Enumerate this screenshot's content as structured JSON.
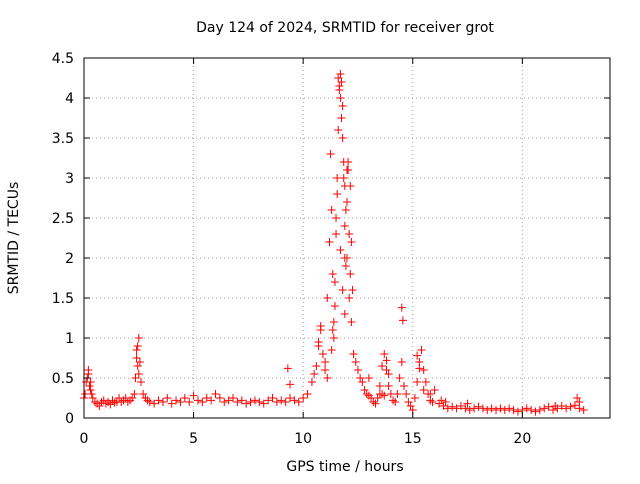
{
  "chart_data": {
    "type": "scatter",
    "title": "Day 124 of 2024, SRMTID for receiver grot",
    "xlabel": "GPS time / hours",
    "ylabel": "SRMTID / TECUs",
    "xlim": [
      0,
      24
    ],
    "ylim": [
      0,
      4.5
    ],
    "xticks": [
      0,
      5,
      10,
      15,
      20
    ],
    "xtick_labels": [
      "0",
      "5",
      "10",
      "15",
      "20"
    ],
    "yticks": [
      0,
      0.5,
      1,
      1.5,
      2,
      2.5,
      3,
      3.5,
      4,
      4.5
    ],
    "ytick_labels": [
      "0",
      "0.5",
      "1",
      "1.5",
      "2",
      "2.5",
      "3",
      "3.5",
      "4",
      "4.5"
    ],
    "grid": true,
    "marker": "+",
    "series": [
      {
        "name": "SRMTID",
        "color": "#ff0000",
        "x": [
          0.0,
          0.05,
          0.1,
          0.15,
          0.2,
          0.25,
          0.3,
          0.35,
          0.4,
          0.5,
          0.6,
          0.7,
          0.8,
          0.9,
          1.0,
          1.1,
          1.2,
          1.3,
          1.4,
          1.5,
          1.6,
          1.7,
          1.8,
          1.9,
          2.0,
          2.1,
          2.2,
          2.3,
          2.35,
          2.4,
          2.45,
          2.5,
          2.55,
          2.6,
          2.7,
          2.8,
          2.9,
          3.0,
          3.2,
          3.4,
          3.6,
          3.8,
          4.0,
          4.2,
          4.4,
          4.6,
          4.8,
          5.0,
          5.2,
          5.4,
          5.6,
          5.8,
          6.0,
          6.2,
          6.4,
          6.6,
          6.8,
          7.0,
          7.2,
          7.4,
          7.6,
          7.8,
          8.0,
          8.2,
          8.4,
          8.6,
          8.8,
          9.0,
          9.2,
          9.4,
          9.6,
          9.8,
          10.0,
          10.2,
          10.4,
          10.5,
          10.6,
          10.7,
          10.8,
          10.9,
          11.0,
          11.1,
          11.2,
          11.25,
          11.3,
          11.35,
          11.4,
          11.45,
          11.5,
          11.55,
          11.6,
          11.65,
          11.7,
          11.75,
          11.8,
          11.85,
          11.9,
          11.95,
          12.0,
          12.05,
          12.1,
          12.15,
          12.2,
          12.3,
          12.4,
          12.5,
          12.6,
          12.7,
          12.8,
          12.9,
          13.0,
          13.1,
          13.2,
          13.3,
          13.4,
          13.5,
          13.6,
          13.7,
          13.8,
          13.9,
          14.0,
          14.1,
          14.2,
          14.3,
          14.4,
          14.5,
          14.6,
          14.7,
          14.8,
          14.9,
          15.0,
          15.1,
          15.2,
          15.3,
          15.4,
          15.5,
          15.6,
          15.7,
          15.8,
          15.9,
          16.0,
          16.2,
          16.4,
          16.6,
          16.8,
          17.0,
          17.2,
          17.4,
          17.6,
          17.8,
          18.0,
          18.2,
          18.4,
          18.6,
          18.8,
          19.0,
          19.2,
          19.4,
          19.6,
          19.8,
          20.0,
          20.2,
          20.4,
          20.6,
          20.8,
          21.0,
          21.2,
          21.4,
          21.6,
          21.8,
          22.0,
          22.2,
          22.4,
          22.6,
          22.8,
          11.6,
          11.65,
          11.7,
          11.75,
          11.8,
          11.85,
          11.9,
          11.7,
          11.8,
          11.9,
          12.0,
          12.1,
          11.4,
          11.45,
          11.5,
          11.55,
          12.05,
          12.15,
          12.2,
          12.25,
          11.3,
          11.35,
          11.9,
          11.95,
          12.0,
          14.5,
          14.55,
          15.2,
          15.3,
          13.8,
          13.9,
          2.4,
          2.45,
          2.5,
          0.2,
          0.3,
          9.3,
          9.4,
          10.7,
          10.8,
          11.0,
          11.1,
          13.0,
          13.5,
          13.6,
          13.7,
          15.5,
          15.8,
          16.3,
          16.5,
          17.5,
          21.5,
          22.5,
          22.6
        ],
        "y": [
          0.25,
          0.3,
          0.45,
          0.5,
          0.55,
          0.4,
          0.35,
          0.3,
          0.25,
          0.2,
          0.18,
          0.15,
          0.2,
          0.22,
          0.18,
          0.2,
          0.17,
          0.22,
          0.19,
          0.2,
          0.25,
          0.2,
          0.22,
          0.25,
          0.2,
          0.22,
          0.25,
          0.3,
          0.5,
          0.75,
          0.9,
          1.0,
          0.7,
          0.45,
          0.3,
          0.25,
          0.22,
          0.2,
          0.18,
          0.22,
          0.2,
          0.25,
          0.18,
          0.22,
          0.2,
          0.25,
          0.2,
          0.28,
          0.22,
          0.2,
          0.25,
          0.22,
          0.3,
          0.25,
          0.2,
          0.22,
          0.25,
          0.2,
          0.22,
          0.18,
          0.2,
          0.22,
          0.2,
          0.18,
          0.22,
          0.25,
          0.2,
          0.22,
          0.2,
          0.25,
          0.22,
          0.2,
          0.25,
          0.3,
          0.45,
          0.55,
          0.65,
          0.9,
          1.1,
          0.8,
          0.6,
          1.5,
          2.2,
          3.3,
          2.6,
          1.8,
          1.2,
          1.4,
          2.5,
          3.0,
          3.6,
          4.1,
          4.3,
          4.2,
          3.9,
          3.0,
          2.4,
          1.9,
          2.7,
          3.1,
          2.3,
          1.8,
          1.2,
          0.8,
          0.7,
          0.6,
          0.5,
          0.45,
          0.35,
          0.3,
          0.28,
          0.25,
          0.2,
          0.18,
          0.25,
          0.4,
          0.65,
          0.8,
          0.6,
          0.4,
          0.3,
          0.22,
          0.2,
          0.3,
          0.5,
          0.7,
          0.4,
          0.3,
          0.2,
          0.15,
          0.1,
          0.25,
          0.45,
          0.7,
          0.85,
          0.6,
          0.45,
          0.3,
          0.22,
          0.2,
          0.35,
          0.18,
          0.15,
          0.12,
          0.14,
          0.12,
          0.15,
          0.12,
          0.1,
          0.12,
          0.14,
          0.12,
          0.1,
          0.12,
          0.1,
          0.12,
          0.1,
          0.12,
          0.1,
          0.08,
          0.1,
          0.12,
          0.1,
          0.08,
          0.1,
          0.12,
          0.14,
          0.1,
          0.12,
          0.15,
          0.12,
          0.14,
          0.16,
          0.12,
          0.1,
          4.25,
          4.15,
          4.0,
          3.75,
          3.5,
          3.2,
          2.9,
          2.1,
          1.6,
          1.3,
          2.0,
          1.5,
          1.0,
          1.7,
          2.3,
          2.8,
          3.2,
          2.9,
          2.2,
          1.6,
          0.85,
          1.1,
          2.0,
          2.6,
          3.1,
          1.38,
          1.22,
          0.78,
          0.62,
          0.72,
          0.55,
          0.85,
          0.65,
          0.55,
          0.6,
          0.45,
          0.62,
          0.42,
          0.95,
          1.15,
          0.7,
          0.5,
          0.5,
          0.3,
          0.3,
          0.28,
          0.35,
          0.3,
          0.22,
          0.2,
          0.18,
          0.15,
          0.25,
          0.2
        ]
      }
    ]
  }
}
